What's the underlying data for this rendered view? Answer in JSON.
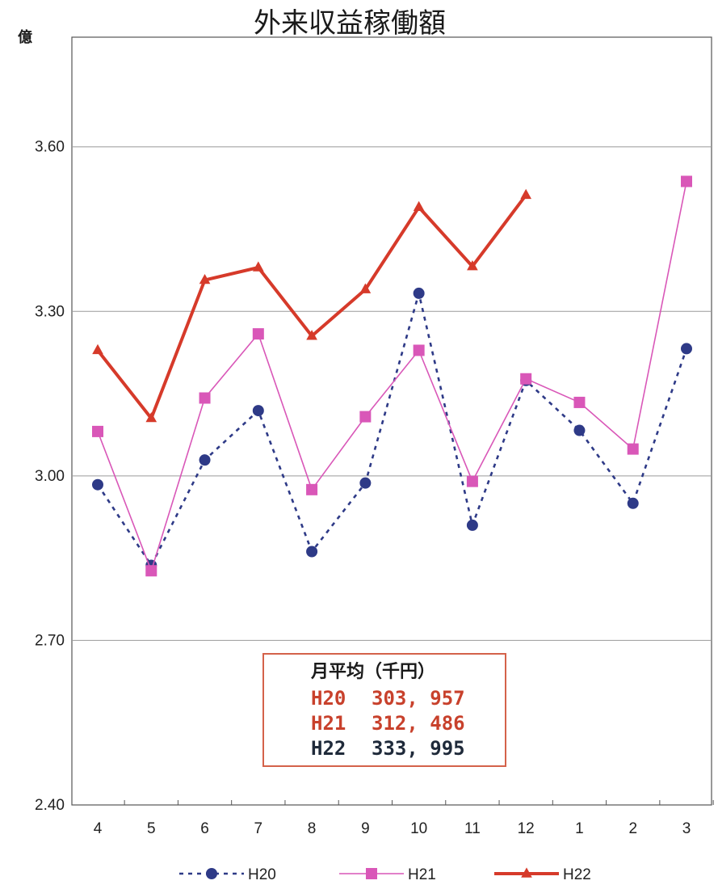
{
  "chart_data": {
    "type": "line",
    "title": "外来収益稼働額",
    "unit_label": "億",
    "categories": [
      "4",
      "5",
      "6",
      "7",
      "8",
      "9",
      "10",
      "11",
      "12",
      "1",
      "2",
      "3"
    ],
    "ylim": [
      2.4,
      3.8
    ],
    "y_ticks": [
      "2.40",
      "2.70",
      "3.00",
      "3.30",
      "3.60"
    ],
    "y_tick_values": [
      2.4,
      2.7,
      3.0,
      3.3,
      3.6
    ],
    "grid": true,
    "legend_position": "bottom",
    "series": [
      {
        "name": "H20",
        "color": "#2e3a87",
        "marker": "circle",
        "line_style": "dotted",
        "values": [
          2.984,
          2.837,
          3.029,
          3.119,
          2.862,
          2.987,
          3.333,
          2.91,
          3.174,
          3.083,
          2.95,
          3.232
        ]
      },
      {
        "name": "H21",
        "color": "#d957b8",
        "marker": "square",
        "line_style": "solid",
        "values": [
          3.081,
          2.827,
          3.142,
          3.259,
          2.975,
          3.108,
          3.229,
          2.99,
          3.177,
          3.134,
          3.049,
          3.537
        ]
      },
      {
        "name": "H22",
        "color": "#d63a2a",
        "marker": "triangle",
        "line_style": "thick",
        "values": [
          3.229,
          3.105,
          3.357,
          3.38,
          3.255,
          3.34,
          3.49,
          3.382,
          3.512,
          null,
          null,
          null
        ]
      }
    ],
    "annotation": {
      "title": "月平均（千円）",
      "rows": [
        {
          "label": "H20",
          "value": "303, 957",
          "color": "#c8412c"
        },
        {
          "label": "H21",
          "value": "312, 486",
          "color": "#c8412c"
        },
        {
          "label": "H22",
          "value": "333, 995",
          "color": "#1f2a3a"
        }
      ],
      "border_color": "#d4624a"
    }
  }
}
